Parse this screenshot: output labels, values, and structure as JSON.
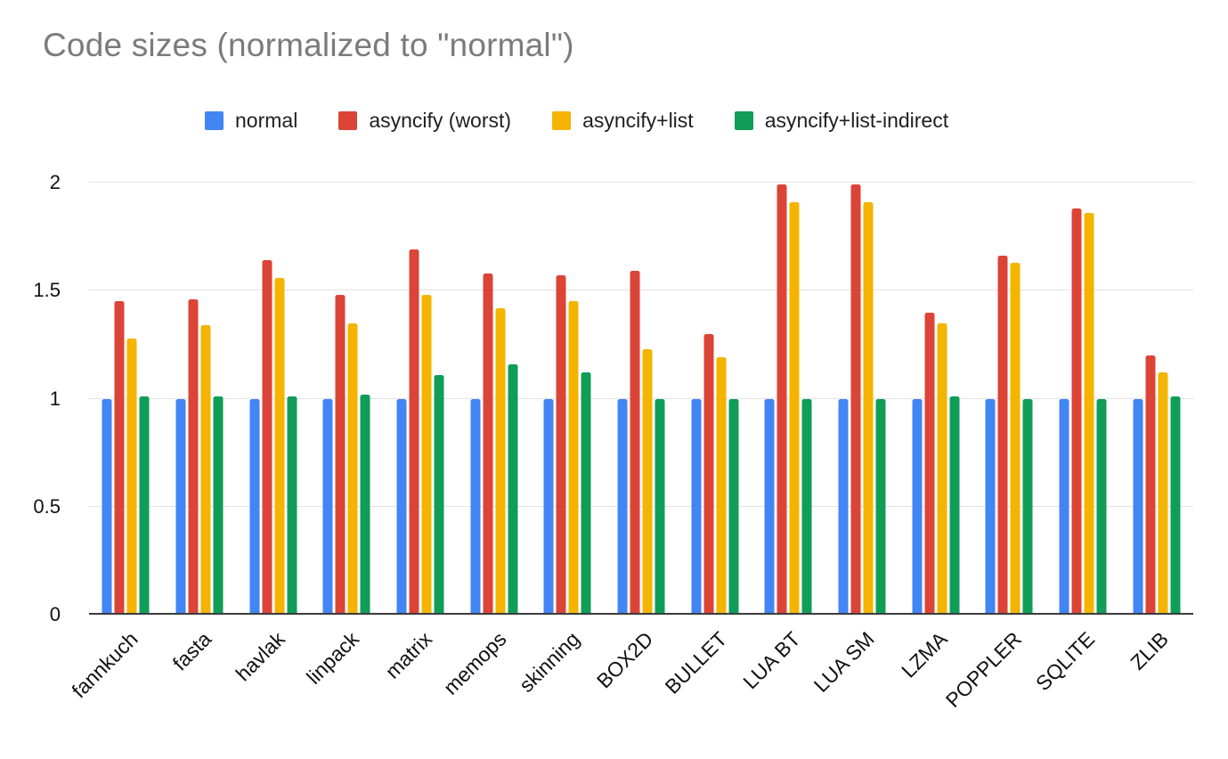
{
  "chart_data": {
    "type": "bar",
    "title": "Code sizes (normalized to \"normal\")",
    "xlabel": "",
    "ylabel": "",
    "ylim": [
      0,
      2
    ],
    "yticks": [
      0,
      0.5,
      1,
      1.5,
      2
    ],
    "grid": true,
    "legend_position": "top",
    "categories": [
      "fannkuch",
      "fasta",
      "havlak",
      "linpack",
      "matrix",
      "memops",
      "skinning",
      "BOX2D",
      "BULLET",
      "LUA BT",
      "LUA SM",
      "LZMA",
      "POPPLER",
      "SQLITE",
      "ZLIB"
    ],
    "series": [
      {
        "name": "normal",
        "color": "#4285F4",
        "values": [
          1.0,
          1.0,
          1.0,
          1.0,
          1.0,
          1.0,
          1.0,
          1.0,
          1.0,
          1.0,
          1.0,
          1.0,
          1.0,
          1.0,
          1.0
        ]
      },
      {
        "name": "asyncify (worst)",
        "color": "#DB4437",
        "values": [
          1.45,
          1.46,
          1.64,
          1.48,
          1.69,
          1.58,
          1.57,
          1.59,
          1.3,
          1.99,
          1.99,
          1.4,
          1.66,
          1.88,
          1.2
        ]
      },
      {
        "name": "asyncify+list",
        "color": "#F4B400",
        "values": [
          1.28,
          1.34,
          1.56,
          1.35,
          1.48,
          1.42,
          1.45,
          1.23,
          1.19,
          1.91,
          1.91,
          1.35,
          1.63,
          1.86,
          1.12
        ]
      },
      {
        "name": "asyncify+list-indirect",
        "color": "#0F9D58",
        "values": [
          1.01,
          1.01,
          1.01,
          1.02,
          1.11,
          1.16,
          1.12,
          1.0,
          1.0,
          1.0,
          1.0,
          1.01,
          1.0,
          1.0,
          1.01
        ]
      }
    ]
  }
}
